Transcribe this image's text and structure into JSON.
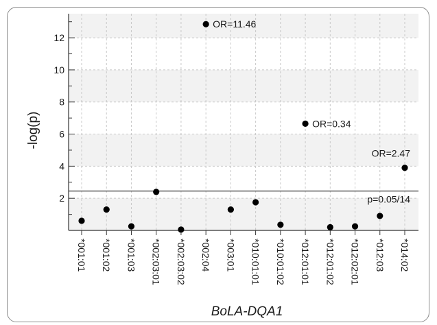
{
  "chart_data": {
    "type": "scatter",
    "xlabel": "BoLA-DQA1",
    "ylabel": "-log(p)",
    "ylim": [
      0,
      13.5
    ],
    "yticks": [
      2,
      4,
      6,
      8,
      10,
      12
    ],
    "categories": [
      "*001:01",
      "*001:02",
      "*001:03",
      "*002:03:01",
      "*002:03:02",
      "*002:04",
      "*003:01",
      "*010:01:01",
      "*010:01:02",
      "*012:01:01",
      "*012:01:02",
      "*012:02:01",
      "*012:03",
      "*014:02"
    ],
    "values": [
      0.6,
      1.3,
      0.25,
      2.4,
      0.05,
      12.85,
      1.3,
      1.75,
      0.35,
      6.65,
      0.2,
      0.25,
      0.9,
      3.9
    ],
    "grid": true,
    "threshold": {
      "value": 2.45,
      "label": "p=0.05/14"
    },
    "annotations": [
      {
        "index": 5,
        "text": "OR=11.46",
        "position": "right"
      },
      {
        "index": 9,
        "text": "OR=0.34",
        "position": "right"
      },
      {
        "index": 13,
        "text": "OR=2.47",
        "position": "above-left"
      }
    ],
    "colors": {
      "points": "#000000",
      "band": "#f2f2f2",
      "grid": "#c8c8c8",
      "axis": "#333333"
    }
  }
}
